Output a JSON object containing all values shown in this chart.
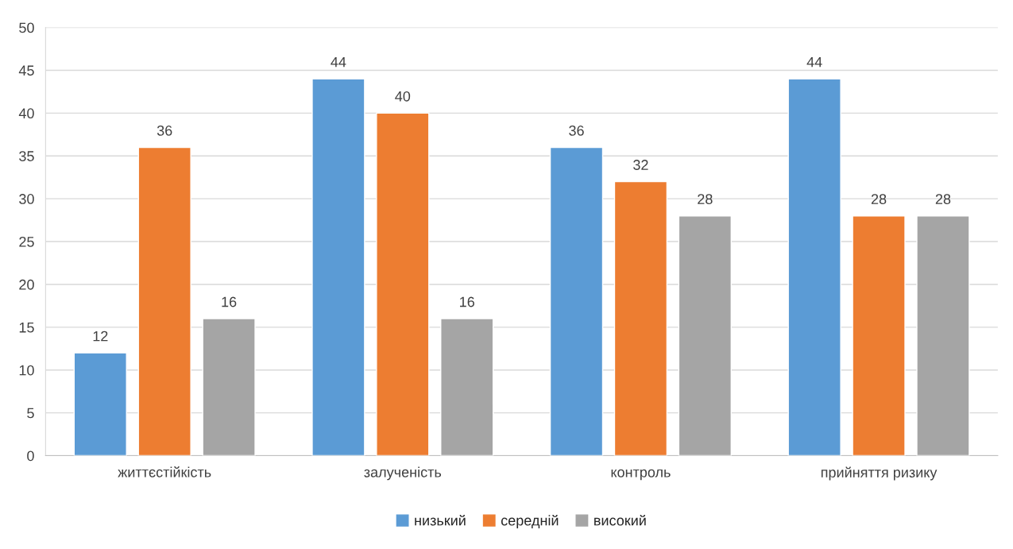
{
  "chart_data": {
    "type": "bar",
    "categories": [
      "життєстійкість",
      "залученість",
      "контроль",
      "прийняття ризику"
    ],
    "series": [
      {
        "name": "низький",
        "color": "#5b9bd5",
        "values": [
          12,
          44,
          36,
          44
        ]
      },
      {
        "name": "середній",
        "color": "#ed7d31",
        "values": [
          36,
          40,
          32,
          28
        ]
      },
      {
        "name": "високий",
        "color": "#a5a5a5",
        "values": [
          16,
          16,
          28,
          28
        ]
      }
    ],
    "ylim": [
      0,
      50
    ],
    "yticks": [
      0,
      5,
      10,
      15,
      20,
      25,
      30,
      35,
      40,
      45,
      50
    ],
    "grid": "y",
    "legend": "bottom",
    "data_labels": true
  }
}
